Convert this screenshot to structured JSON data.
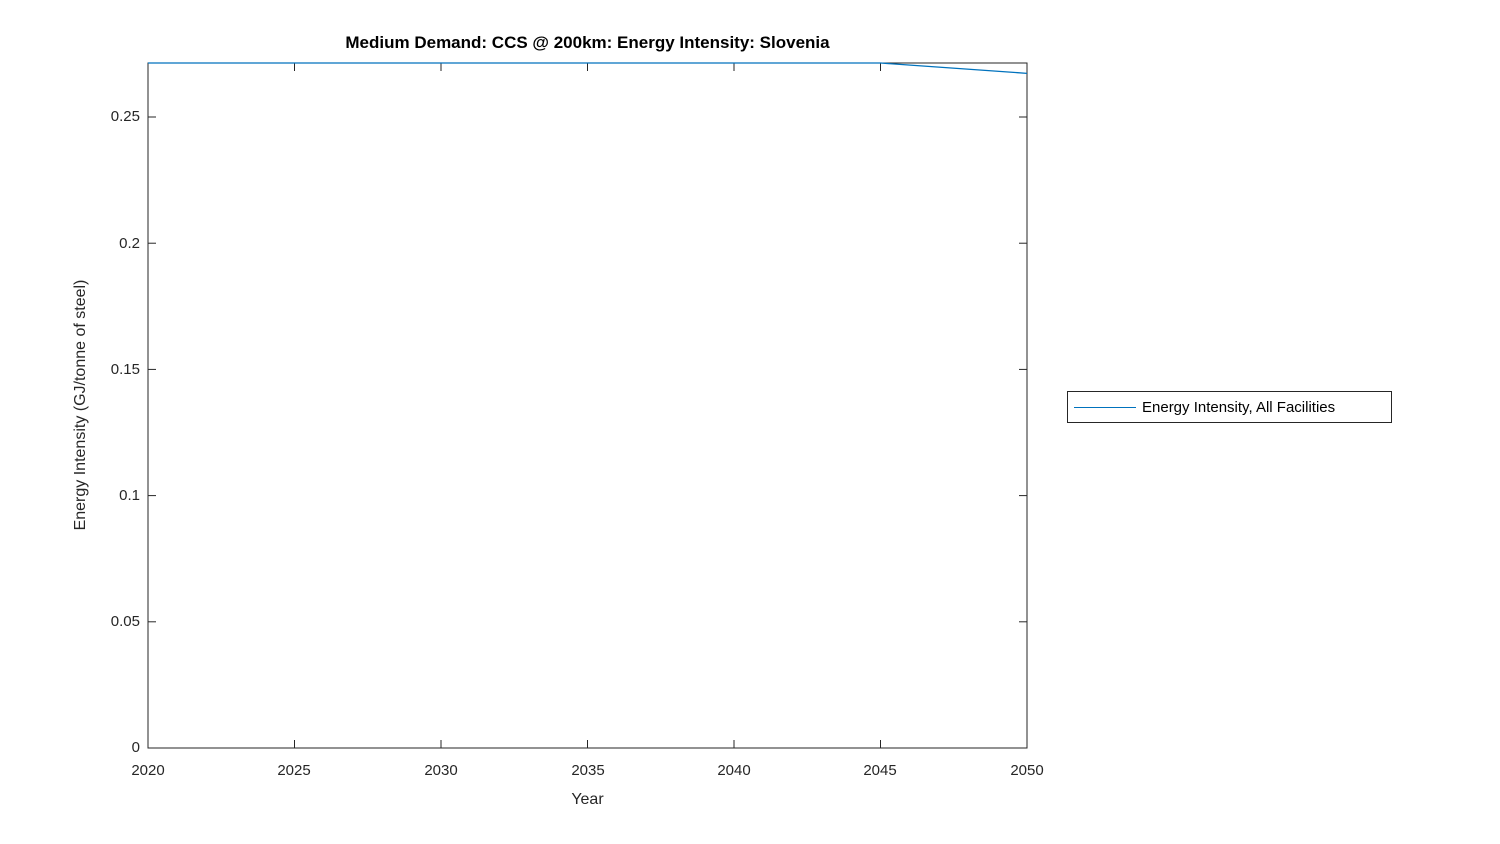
{
  "figure": {
    "title": "Medium Demand: CCS @ 200km: Energy Intensity: Slovenia",
    "xlabel": "Year",
    "ylabel": "Energy Intensity (GJ/tonne of steel)",
    "x_ticks": [
      "2020",
      "2025",
      "2030",
      "2035",
      "2040",
      "2045",
      "2050"
    ],
    "y_ticks": [
      "0",
      "0.05",
      "0.1",
      "0.15",
      "0.2",
      "0.25"
    ],
    "legend": {
      "entries": [
        {
          "label": "Energy Intensity, All Facilities",
          "color": "#0072BD"
        }
      ]
    },
    "colors": {
      "line": "#0072BD",
      "axes": "#262626",
      "background": "#ffffff"
    }
  },
  "chart_data": {
    "type": "line",
    "title": "Medium Demand: CCS @ 200km: Energy Intensity: Slovenia",
    "xlabel": "Year",
    "ylabel": "Energy Intensity (GJ/tonne of steel)",
    "xlim": [
      2020,
      2050
    ],
    "ylim": [
      0,
      0.2714
    ],
    "grid": false,
    "legend_position": "right-outside",
    "series": [
      {
        "name": "Energy Intensity, All Facilities",
        "color": "#0072BD",
        "x": [
          2020,
          2025,
          2030,
          2035,
          2040,
          2045,
          2050
        ],
        "y": [
          0.2714,
          0.2714,
          0.2714,
          0.2714,
          0.2714,
          0.2714,
          0.2673
        ]
      }
    ]
  }
}
